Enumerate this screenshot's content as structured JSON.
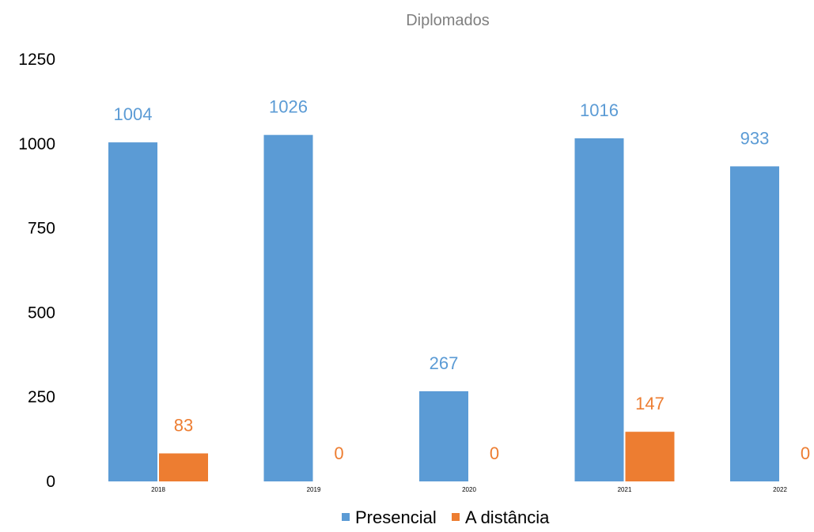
{
  "chart_data": {
    "type": "bar",
    "title": "Diplomados",
    "xlabel": "",
    "ylabel": "",
    "categories": [
      "2018",
      "2019",
      "2020",
      "2021",
      "2022"
    ],
    "series": [
      {
        "name": "Presencial",
        "values": [
          1004,
          1026,
          267,
          1016,
          933
        ],
        "color": "#5b9bd5"
      },
      {
        "name": "A distância",
        "values": [
          83,
          0,
          0,
          147,
          0
        ],
        "color": "#ed7d31"
      }
    ],
    "ylim": [
      0,
      1250
    ],
    "yticks": [
      0,
      250,
      500,
      750,
      1000,
      1250
    ],
    "ytick_labels": [
      "0",
      "250",
      "500",
      "750",
      "1000",
      "1250"
    ],
    "grid": false,
    "data_labels": true,
    "legend_position": "bottom"
  }
}
